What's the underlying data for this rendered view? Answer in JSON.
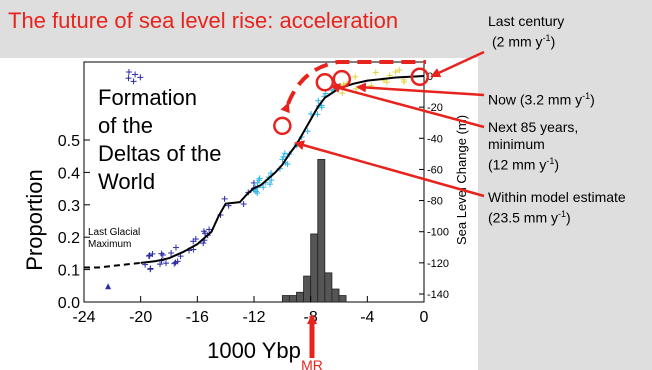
{
  "slide_title": "The future of sea level rise: acceleration",
  "callouts": [
    {
      "line1": "Last century",
      "line2_pre": "(2 mm y",
      "sup": "-1",
      "line2_post": ")",
      "line3": ""
    },
    {
      "line1": "",
      "line2_pre": "Now (3.2 mm y",
      "sup": "-1",
      "line2_post": ")",
      "line3": ""
    },
    {
      "line1": "Next 85 years,",
      "line2_pre": "",
      "sup": "",
      "line2_post": "",
      "line3": "minimum",
      "line4_pre": "(12 mm y",
      "line4_sup": "-1",
      "line4_post": ")"
    },
    {
      "line1": "Within model estimate",
      "line2_pre": "(23.5 mm y",
      "sup": "-1",
      "line2_post": ")",
      "line3": ""
    }
  ],
  "colors": {
    "title_red": "#e8231d",
    "bars": "#555555",
    "curve": "#000000",
    "arrow": "#e8231d",
    "data_blue": "#2c2ca8",
    "data_cyan": "#2bb6e8",
    "data_yellow": "#e0d23a"
  },
  "chart_data": {
    "type": "bar",
    "title": "Formation of the Deltas of the World",
    "xlabel": "1000 Ybp",
    "ylabel": "Proportion",
    "ylabel_right": "Sea Level Change (m)",
    "xlim": [
      -24,
      0
    ],
    "ylim": [
      0,
      0.5
    ],
    "y2lim": [
      -150,
      0
    ],
    "x_ticks": [
      "-24",
      "-20",
      "-16",
      "-12",
      "-8",
      "-4",
      "0"
    ],
    "x_tick_values": [
      -24,
      -20,
      -16,
      -12,
      -8,
      -4,
      0
    ],
    "y_ticks": [
      "0.0",
      "0.1",
      "0.2",
      "0.3",
      "0.4",
      "0.5"
    ],
    "y_tick_values": [
      0,
      0.1,
      0.2,
      0.3,
      0.4,
      0.5
    ],
    "y2_ticks": [
      "0",
      "-20",
      "-40",
      "-60",
      "-80",
      "-100",
      "-120",
      "-140"
    ],
    "y2_tick_values": [
      0,
      -20,
      -40,
      -60,
      -80,
      -100,
      -120,
      -140
    ],
    "bars": [
      {
        "x": -9.75,
        "width": 0.5,
        "value": 0.02
      },
      {
        "x": -9.25,
        "width": 0.5,
        "value": 0.02
      },
      {
        "x": -8.75,
        "width": 0.5,
        "value": 0.03
      },
      {
        "x": -8.25,
        "width": 0.5,
        "value": 0.08
      },
      {
        "x": -7.75,
        "width": 0.5,
        "value": 0.21
      },
      {
        "x": -7.25,
        "width": 0.5,
        "value": 0.44
      },
      {
        "x": -6.75,
        "width": 0.5,
        "value": 0.09
      },
      {
        "x": -6.25,
        "width": 0.5,
        "value": 0.04
      },
      {
        "x": -5.75,
        "width": 0.5,
        "value": 0.02
      }
    ],
    "sea_level_curve": {
      "x": [
        -20,
        -19,
        -18,
        -17,
        -16,
        -15,
        -14.5,
        -14,
        -13,
        -12.5,
        -12,
        -11.5,
        -11,
        -10.5,
        -10,
        -9.5,
        -9,
        -8.5,
        -8,
        -7.5,
        -7,
        -6,
        -5,
        -4,
        -3,
        -2,
        -1,
        0
      ],
      "y": [
        -120,
        -119,
        -117,
        -113,
        -108,
        -100,
        -90,
        -82,
        -81,
        -76,
        -72,
        -70,
        -66,
        -62,
        -57,
        -50,
        -44,
        -36,
        -28,
        -20,
        -14,
        -8,
        -5,
        -3,
        -2,
        -1,
        -0.5,
        0
      ]
    },
    "glacial_extension": {
      "x": [
        -24,
        -23,
        -22,
        -21,
        -20
      ],
      "y": [
        -123,
        -123,
        -122,
        -121,
        -120
      ]
    },
    "annotations": [
      {
        "text": "Last Glacial",
        "x": -23.8,
        "y": 0.23
      },
      {
        "text": "Maximum",
        "x": -23.8,
        "y": 0.2
      }
    ],
    "markers": [
      {
        "label": "MR",
        "x": -7
      }
    ],
    "circles": [
      {
        "x": -10,
        "y2": -32
      },
      {
        "x": -7,
        "y2": -4
      },
      {
        "x": -5.8,
        "y2": -2
      },
      {
        "x": -0.3,
        "y2": -0.5
      }
    ]
  }
}
